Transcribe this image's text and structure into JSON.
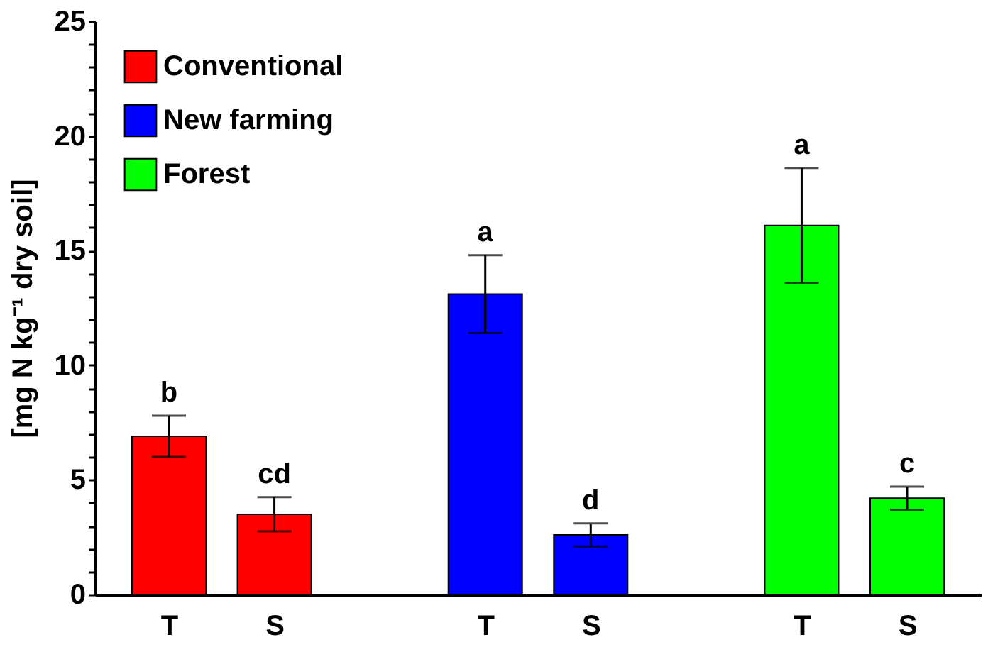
{
  "chart_data": {
    "type": "bar",
    "ylabel": "[mg N kg⁻¹ dry soil]",
    "categories": [
      "T",
      "S",
      "T",
      "S",
      "T",
      "S"
    ],
    "series": [
      {
        "name": "Conventional",
        "color": "#ff0000",
        "values": [
          6.9,
          3.5,
          null,
          null,
          null,
          null
        ],
        "errors": [
          0.9,
          0.75,
          null,
          null,
          null,
          null
        ],
        "value_labels": [
          "b",
          "cd",
          null,
          null,
          null,
          null
        ]
      },
      {
        "name": "New farming",
        "color": "#0000ff",
        "values": [
          null,
          null,
          13.1,
          2.6,
          null,
          null
        ],
        "errors": [
          null,
          null,
          1.7,
          0.5,
          null,
          null
        ],
        "value_labels": [
          null,
          null,
          "a",
          "d",
          null,
          null
        ]
      },
      {
        "name": "Forest",
        "color": "#00ff00",
        "values": [
          null,
          null,
          null,
          null,
          16.1,
          4.2
        ],
        "errors": [
          null,
          null,
          null,
          null,
          2.5,
          0.5
        ],
        "value_labels": [
          null,
          null,
          null,
          null,
          "a",
          "c"
        ]
      }
    ],
    "ylim": [
      0,
      25
    ],
    "yticks": [
      0,
      {
        "value": 1,
        "label": null
      },
      {
        "value": 2,
        "label": null
      },
      {
        "value": 3,
        "label": null
      },
      {
        "value": 4,
        "label": null
      },
      5,
      {
        "value": 6,
        "label": null
      },
      {
        "value": 7,
        "label": null
      },
      {
        "value": 8,
        "label": null
      },
      {
        "value": 9,
        "label": null
      },
      10,
      {
        "value": 11,
        "label": null
      },
      {
        "value": 12,
        "label": null
      },
      {
        "value": 13,
        "label": null
      },
      {
        "value": 14,
        "label": null
      },
      15,
      {
        "value": 16,
        "label": null
      },
      {
        "value": 17,
        "label": null
      },
      {
        "value": 18,
        "label": null
      },
      {
        "value": 19,
        "label": null
      },
      20,
      {
        "value": 21,
        "label": null
      },
      {
        "value": 22,
        "label": null
      },
      {
        "value": 23,
        "label": null
      },
      {
        "value": 24,
        "label": null
      },
      25
    ],
    "legend": "top left",
    "grid": false
  }
}
